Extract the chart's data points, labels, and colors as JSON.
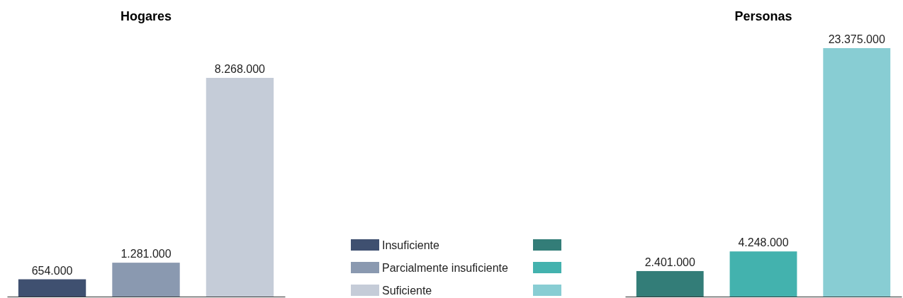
{
  "chart_data": [
    {
      "type": "bar",
      "title": "Hogares",
      "categories": [
        null
      ],
      "legend": "right",
      "series": [
        {
          "name": "Insuficiente",
          "color": "#3f5070",
          "values": [
            654000
          ],
          "value_labels": [
            "654.000"
          ]
        },
        {
          "name": "Parcialmente insuficiente",
          "color": "#8a99b0",
          "values": [
            1281000
          ],
          "value_labels": [
            "1.281.000"
          ]
        },
        {
          "name": "Suficiente",
          "color": "#c5ccd8",
          "values": [
            8268000
          ],
          "value_labels": [
            "8.268.000"
          ]
        }
      ]
    },
    {
      "type": "bar",
      "title": "Personas",
      "categories": [
        null
      ],
      "series": [
        {
          "color": "#337d78",
          "values": [
            2401000
          ],
          "value_labels": [
            "2.401.000"
          ]
        },
        {
          "color": "#43b2ae",
          "values": [
            4248000
          ],
          "value_labels": [
            "4.248.000"
          ]
        },
        {
          "color": "#88cdd3",
          "values": [
            23375000
          ],
          "value_labels": [
            "23.375.000"
          ]
        }
      ]
    }
  ]
}
